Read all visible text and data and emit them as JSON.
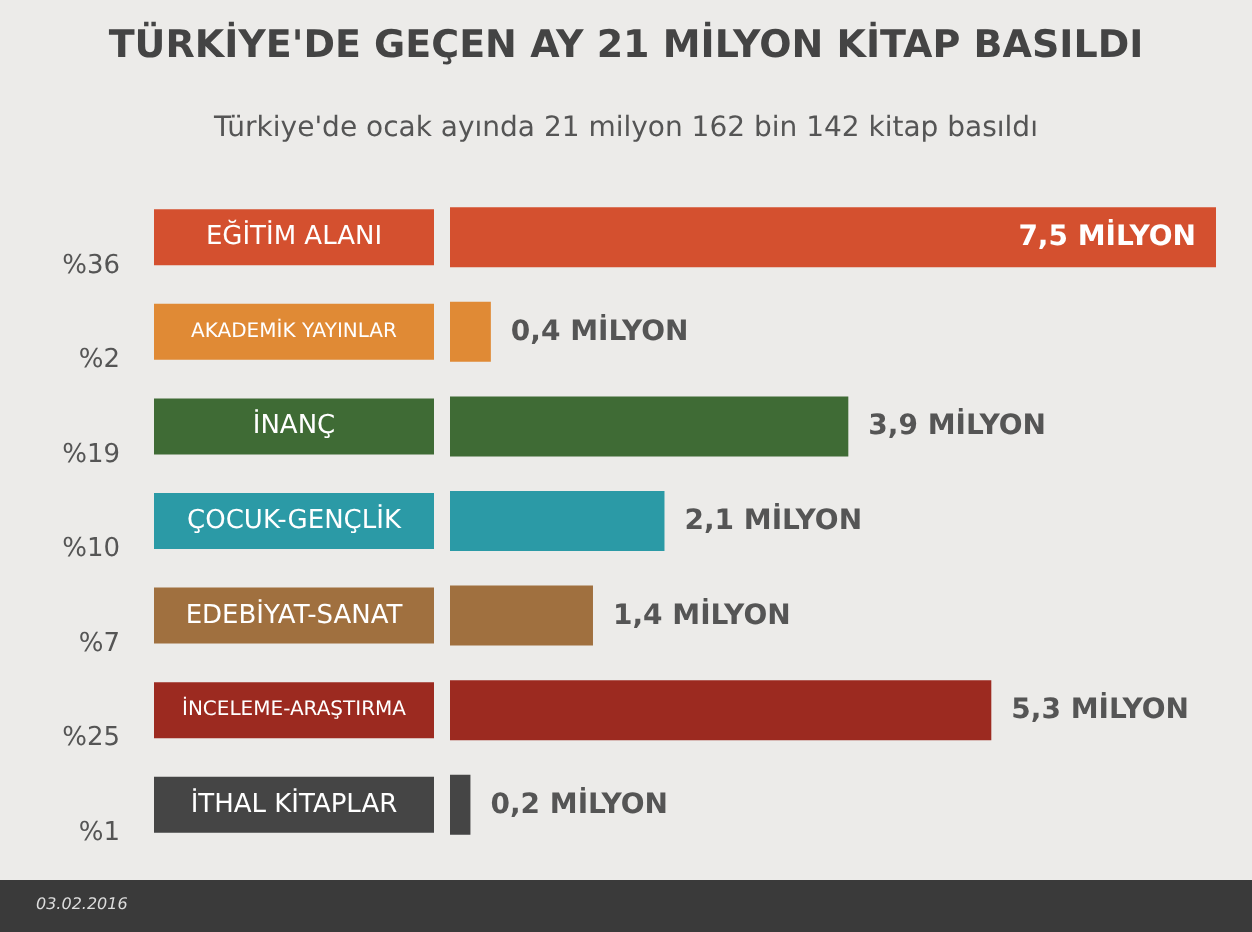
{
  "chart_data": {
    "type": "bar",
    "orientation": "horizontal",
    "title": "TÜRKİYE'DE GEÇEN AY 21 MİLYON KİTAP BASILDI",
    "subtitle": "Türkiye'de ocak ayında 21 milyon 162 bin 142 kitap basıldı",
    "categories": [
      "EĞİTİM ALANI",
      "AKADEMİK YAYINLAR",
      "İNANÇ",
      "ÇOCUK-GENÇLİK",
      "EDEBİYAT-SANAT",
      "İNCELEME-ARAŞTIRMA",
      "İTHAL KİTAPLAR"
    ],
    "values": [
      7.5,
      0.4,
      3.9,
      2.1,
      1.4,
      5.3,
      0.2
    ],
    "value_labels": [
      "7,5 MİLYON",
      "0,4 MİLYON",
      "3,9 MİLYON",
      "2,1 MİLYON",
      "1,4 MİLYON",
      "5,3 MİLYON",
      "0,2 MİLYON"
    ],
    "colors": [
      "#d4502f",
      "#e08a35",
      "#3f6b35",
      "#2b9aa6",
      "#a0703f",
      "#9c2a20",
      "#454545"
    ],
    "annotations": [
      "%36",
      "%2",
      "%19",
      "%10",
      "%7",
      "%25",
      "%1",
      "03.02.2016"
    ]
  }
}
